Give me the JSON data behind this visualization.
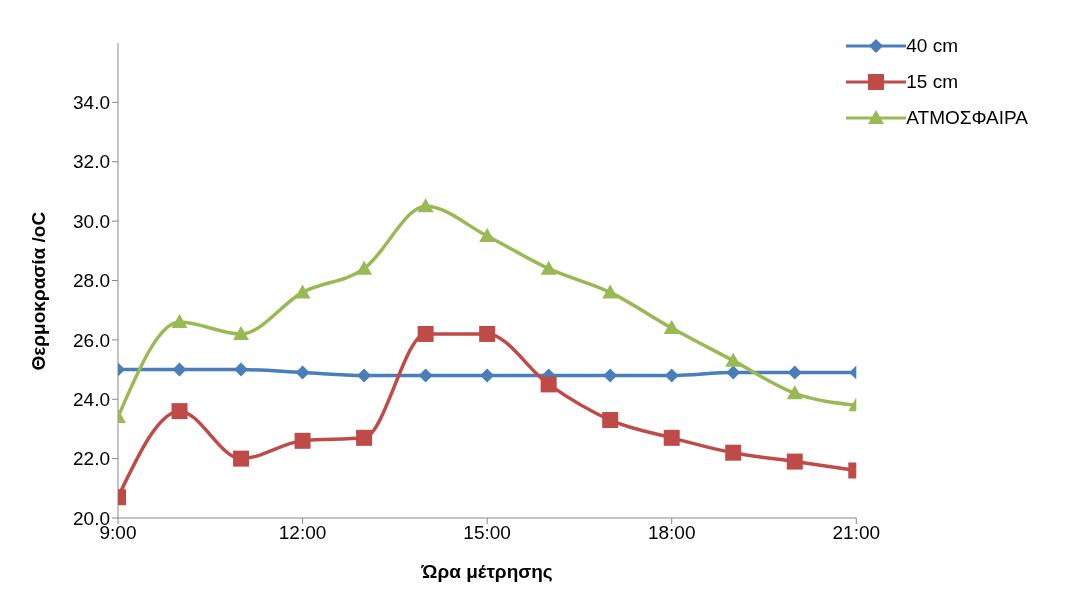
{
  "chart_data": {
    "type": "line",
    "xlabel": "Ώρα μέτρησης",
    "ylabel": "Θερμοκρασία /oC",
    "x": [
      9,
      10,
      11,
      12,
      13,
      14,
      15,
      16,
      17,
      18,
      19,
      20,
      21
    ],
    "xlim": [
      9,
      21
    ],
    "xticks": [
      {
        "value": 9,
        "label": "9:00"
      },
      {
        "value": 12,
        "label": "12:00"
      },
      {
        "value": 15,
        "label": "15:00"
      },
      {
        "value": 18,
        "label": "18:00"
      },
      {
        "value": 21,
        "label": "21:00"
      }
    ],
    "ylim": [
      20,
      36
    ],
    "yticks": [
      {
        "value": 20,
        "label": "20.0"
      },
      {
        "value": 22,
        "label": "22.0"
      },
      {
        "value": 24,
        "label": "24.0"
      },
      {
        "value": 26,
        "label": "26.0"
      },
      {
        "value": 28,
        "label": "28.0"
      },
      {
        "value": 30,
        "label": "30.0"
      },
      {
        "value": 32,
        "label": "32.0"
      },
      {
        "value": 34,
        "label": "34.0"
      }
    ],
    "grid": false,
    "legend": "top right",
    "series": [
      {
        "name": "40 cm",
        "color": "#4a7ebb",
        "marker": "diamond",
        "values": [
          25.0,
          25.0,
          25.0,
          24.9,
          24.8,
          24.8,
          24.8,
          24.8,
          24.8,
          24.8,
          24.9,
          24.9,
          24.9
        ]
      },
      {
        "name": "15 cm",
        "color": "#be4b48",
        "marker": "square",
        "values": [
          20.7,
          23.6,
          22.0,
          22.6,
          22.7,
          26.2,
          26.2,
          24.5,
          23.3,
          22.7,
          22.2,
          21.9,
          21.6
        ]
      },
      {
        "name": "ΑΤΜΟΣΦΑΙΡΑ",
        "color": "#98b954",
        "marker": "triangle",
        "values": [
          23.4,
          26.6,
          26.2,
          27.6,
          28.4,
          30.5,
          29.5,
          28.4,
          27.6,
          26.4,
          25.3,
          24.2,
          23.8
        ]
      }
    ]
  }
}
